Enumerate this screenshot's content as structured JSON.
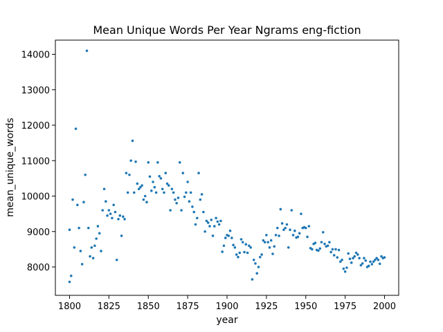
{
  "chart_data": {
    "type": "scatter",
    "title": "Mean Unique Words Per Year Ngrams eng-fiction",
    "xlabel": "year",
    "ylabel": "mean_unique_words",
    "xlim": [
      1791,
      2009
    ],
    "ylim": [
      7200,
      14400
    ],
    "xticks": [
      1800,
      1825,
      1850,
      1875,
      1900,
      1925,
      1950,
      1975,
      2000
    ],
    "yticks": [
      8000,
      9000,
      10000,
      11000,
      12000,
      13000,
      14000
    ],
    "grid": false,
    "marker_color": "#1f77b4",
    "points": [
      [
        1800,
        9050
      ],
      [
        1800,
        7580
      ],
      [
        1801,
        7750
      ],
      [
        1802,
        9900
      ],
      [
        1803,
        8550
      ],
      [
        1804,
        11900
      ],
      [
        1805,
        9750
      ],
      [
        1806,
        9100
      ],
      [
        1807,
        8450
      ],
      [
        1808,
        8080
      ],
      [
        1809,
        9830
      ],
      [
        1810,
        10600
      ],
      [
        1811,
        14100
      ],
      [
        1812,
        9100
      ],
      [
        1813,
        8300
      ],
      [
        1814,
        8550
      ],
      [
        1815,
        8250
      ],
      [
        1816,
        8600
      ],
      [
        1817,
        8800
      ],
      [
        1818,
        9150
      ],
      [
        1819,
        8950
      ],
      [
        1820,
        8450
      ],
      [
        1821,
        9600
      ],
      [
        1822,
        10200
      ],
      [
        1823,
        9850
      ],
      [
        1824,
        9450
      ],
      [
        1825,
        9600
      ],
      [
        1826,
        9500
      ],
      [
        1827,
        9380
      ],
      [
        1828,
        9750
      ],
      [
        1829,
        9550
      ],
      [
        1830,
        8200
      ],
      [
        1831,
        9350
      ],
      [
        1832,
        9450
      ],
      [
        1833,
        8880
      ],
      [
        1834,
        9420
      ],
      [
        1835,
        9350
      ],
      [
        1836,
        10650
      ],
      [
        1837,
        10100
      ],
      [
        1838,
        10600
      ],
      [
        1839,
        11000
      ],
      [
        1840,
        11560
      ],
      [
        1841,
        10100
      ],
      [
        1842,
        10970
      ],
      [
        1843,
        10350
      ],
      [
        1844,
        10200
      ],
      [
        1845,
        10250
      ],
      [
        1846,
        10300
      ],
      [
        1847,
        9900
      ],
      [
        1848,
        10000
      ],
      [
        1849,
        9830
      ],
      [
        1850,
        10950
      ],
      [
        1851,
        10550
      ],
      [
        1852,
        10150
      ],
      [
        1853,
        10400
      ],
      [
        1854,
        10250
      ],
      [
        1855,
        10100
      ],
      [
        1856,
        10950
      ],
      [
        1857,
        10560
      ],
      [
        1858,
        10500
      ],
      [
        1859,
        10200
      ],
      [
        1860,
        10100
      ],
      [
        1861,
        10650
      ],
      [
        1862,
        10350
      ],
      [
        1863,
        10300
      ],
      [
        1864,
        9600
      ],
      [
        1865,
        10200
      ],
      [
        1866,
        10100
      ],
      [
        1867,
        9900
      ],
      [
        1868,
        9800
      ],
      [
        1869,
        9950
      ],
      [
        1870,
        10950
      ],
      [
        1871,
        9600
      ],
      [
        1872,
        10650
      ],
      [
        1873,
        9980
      ],
      [
        1874,
        10100
      ],
      [
        1875,
        10400
      ],
      [
        1876,
        9850
      ],
      [
        1877,
        10100
      ],
      [
        1878,
        9700
      ],
      [
        1879,
        9550
      ],
      [
        1880,
        9200
      ],
      [
        1881,
        9380
      ],
      [
        1882,
        10650
      ],
      [
        1883,
        9900
      ],
      [
        1884,
        10050
      ],
      [
        1885,
        9550
      ],
      [
        1886,
        9000
      ],
      [
        1887,
        9300
      ],
      [
        1888,
        9250
      ],
      [
        1889,
        9150
      ],
      [
        1890,
        9330
      ],
      [
        1891,
        8880
      ],
      [
        1892,
        9150
      ],
      [
        1893,
        9380
      ],
      [
        1894,
        9280
      ],
      [
        1895,
        9200
      ],
      [
        1896,
        9300
      ],
      [
        1897,
        8430
      ],
      [
        1898,
        8600
      ],
      [
        1899,
        8820
      ],
      [
        1900,
        8900
      ],
      [
        1901,
        8880
      ],
      [
        1902,
        9020
      ],
      [
        1903,
        8820
      ],
      [
        1904,
        8620
      ],
      [
        1905,
        8550
      ],
      [
        1906,
        8350
      ],
      [
        1907,
        8280
      ],
      [
        1908,
        8400
      ],
      [
        1909,
        8780
      ],
      [
        1910,
        8700
      ],
      [
        1911,
        8420
      ],
      [
        1912,
        8640
      ],
      [
        1913,
        8400
      ],
      [
        1914,
        8600
      ],
      [
        1915,
        8550
      ],
      [
        1916,
        7650
      ],
      [
        1917,
        8200
      ],
      [
        1918,
        8100
      ],
      [
        1919,
        7820
      ],
      [
        1920,
        8000
      ],
      [
        1921,
        8280
      ],
      [
        1922,
        8350
      ],
      [
        1923,
        8750
      ],
      [
        1924,
        8700
      ],
      [
        1925,
        8900
      ],
      [
        1926,
        8700
      ],
      [
        1927,
        8550
      ],
      [
        1928,
        8750
      ],
      [
        1929,
        8370
      ],
      [
        1930,
        8580
      ],
      [
        1931,
        8900
      ],
      [
        1932,
        9100
      ],
      [
        1933,
        8880
      ],
      [
        1934,
        9630
      ],
      [
        1935,
        9230
      ],
      [
        1936,
        9050
      ],
      [
        1937,
        9100
      ],
      [
        1938,
        9200
      ],
      [
        1939,
        8550
      ],
      [
        1940,
        9050
      ],
      [
        1941,
        9600
      ],
      [
        1942,
        8900
      ],
      [
        1943,
        9020
      ],
      [
        1944,
        8830
      ],
      [
        1945,
        8850
      ],
      [
        1946,
        8950
      ],
      [
        1947,
        9500
      ],
      [
        1948,
        9100
      ],
      [
        1949,
        9120
      ],
      [
        1950,
        9100
      ],
      [
        1951,
        8850
      ],
      [
        1952,
        9150
      ],
      [
        1953,
        8530
      ],
      [
        1954,
        8500
      ],
      [
        1955,
        8650
      ],
      [
        1956,
        8680
      ],
      [
        1957,
        8480
      ],
      [
        1958,
        8460
      ],
      [
        1959,
        8520
      ],
      [
        1960,
        8700
      ],
      [
        1961,
        8980
      ],
      [
        1962,
        8650
      ],
      [
        1963,
        8580
      ],
      [
        1964,
        8600
      ],
      [
        1965,
        8700
      ],
      [
        1966,
        8420
      ],
      [
        1967,
        8500
      ],
      [
        1968,
        8330
      ],
      [
        1969,
        8500
      ],
      [
        1970,
        8270
      ],
      [
        1971,
        8480
      ],
      [
        1972,
        8150
      ],
      [
        1973,
        8200
      ],
      [
        1974,
        7950
      ],
      [
        1975,
        7870
      ],
      [
        1976,
        7980
      ],
      [
        1977,
        8380
      ],
      [
        1978,
        8230
      ],
      [
        1979,
        8120
      ],
      [
        1980,
        8250
      ],
      [
        1981,
        8300
      ],
      [
        1982,
        8400
      ],
      [
        1983,
        8350
      ],
      [
        1984,
        8250
      ],
      [
        1985,
        8050
      ],
      [
        1986,
        8100
      ],
      [
        1987,
        8250
      ],
      [
        1988,
        8180
      ],
      [
        1989,
        8000
      ],
      [
        1990,
        8030
      ],
      [
        1991,
        8150
      ],
      [
        1992,
        8080
      ],
      [
        1993,
        8150
      ],
      [
        1994,
        8200
      ],
      [
        1995,
        8250
      ],
      [
        1996,
        8200
      ],
      [
        1997,
        8090
      ],
      [
        1998,
        8300
      ],
      [
        1999,
        8250
      ],
      [
        2000,
        8270
      ]
    ]
  }
}
